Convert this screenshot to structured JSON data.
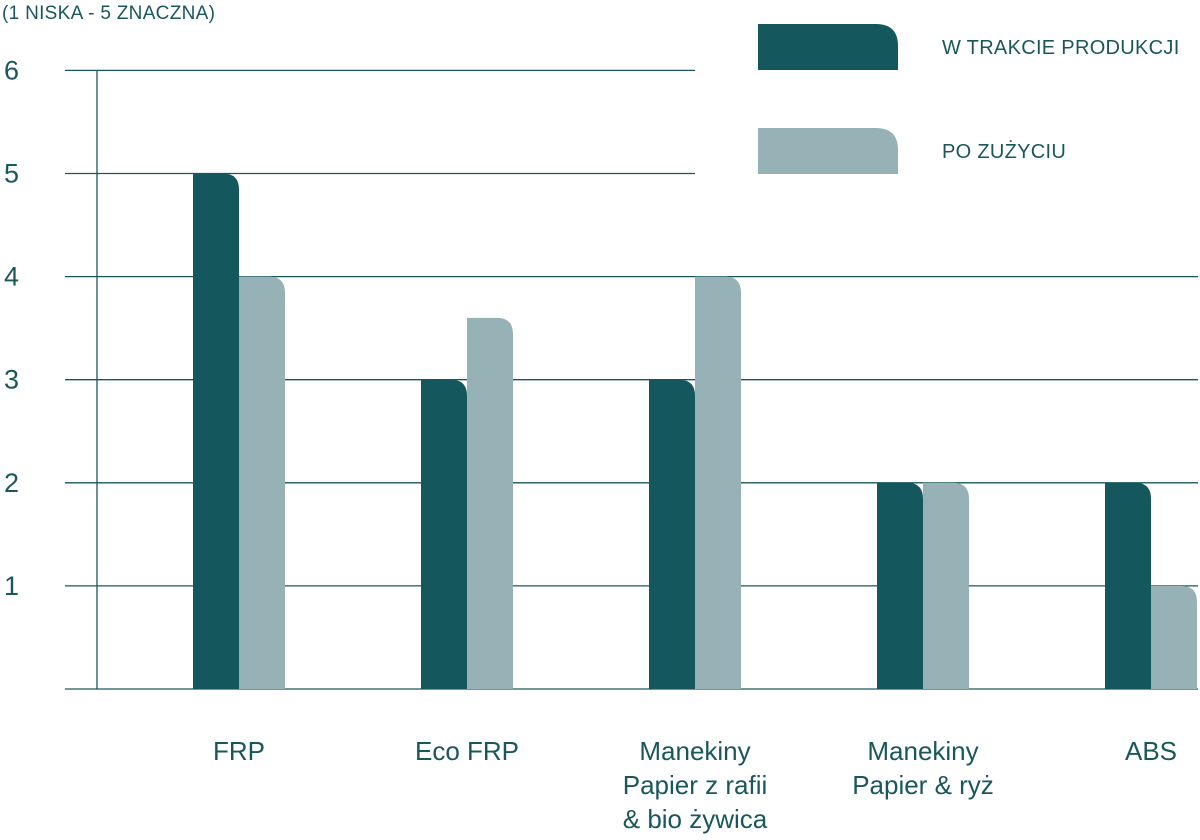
{
  "chart_data": {
    "type": "bar",
    "title": "",
    "scale_note": "(1 NISKA - 5 ZNACZNA)",
    "xlabel": "",
    "ylabel": "",
    "ylim": [
      0,
      6
    ],
    "yticks": [
      "1",
      "2",
      "3",
      "4",
      "5",
      "6"
    ],
    "grid": true,
    "legend_position": "top-right",
    "categories": [
      [
        "FRP"
      ],
      [
        "Eco FRP"
      ],
      [
        "Manekiny",
        "Papier z rafii",
        "& bio żywica"
      ],
      [
        "Manekiny",
        "Papier & ryż"
      ],
      [
        "ABS"
      ]
    ],
    "series": [
      {
        "name": "W TRAKCIE PRODUKCJI",
        "color": "#14575c",
        "values": [
          5,
          3,
          3,
          2,
          2
        ]
      },
      {
        "name": "PO ZUŻYCIU",
        "color": "#97b2b6",
        "values": [
          4,
          3.6,
          4,
          2,
          1
        ]
      }
    ],
    "colors": {
      "axis": "#19575c",
      "text": "#19575c"
    }
  }
}
